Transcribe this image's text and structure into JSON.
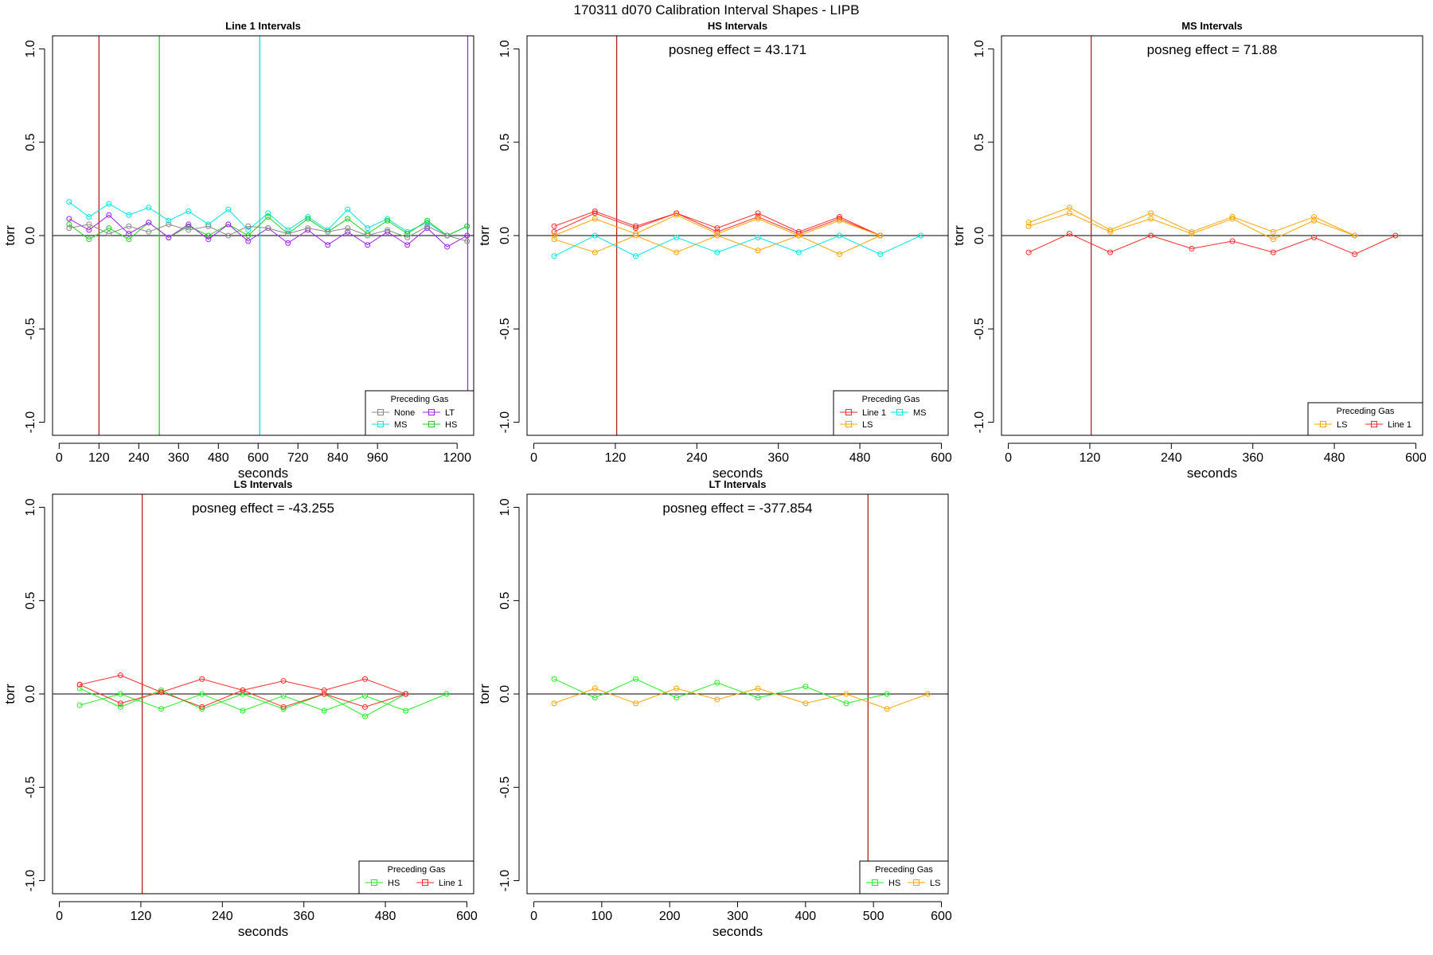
{
  "figure_title": "170311   d070   Calibration Interval Shapes - LIPB",
  "chart_data": [
    {
      "type": "line",
      "title": "Line 1 Intervals",
      "xlabel": "seconds",
      "ylabel": "torr",
      "xlim": [
        -20,
        1250
      ],
      "ylim": [
        -1.07,
        1.07
      ],
      "xticks": [
        0,
        120,
        240,
        360,
        480,
        600,
        720,
        840,
        960,
        1200
      ],
      "yticks": [
        1.0,
        0.5,
        0.0,
        -0.5,
        -1.0
      ],
      "ytick_labels": [
        "1.0",
        "0.5",
        "0.0",
        "-0.5",
        "-1.0"
      ],
      "annotation": "",
      "vlines": [
        {
          "x": 120,
          "color": "#b22222"
        },
        {
          "x": 302,
          "color": "#22cc22"
        },
        {
          "x": 605,
          "color": "#00e5e5"
        },
        {
          "x": 1232,
          "color": "#9a32cd"
        }
      ],
      "legend": {
        "title": "Preceding Gas",
        "position": "bottom-right",
        "columns": 2,
        "entries": [
          {
            "name": "None",
            "color": "#888888"
          },
          {
            "name": "LT",
            "color": "#a020f0"
          },
          {
            "name": "MS",
            "color": "#00e5e5"
          },
          {
            "name": "HS",
            "color": "#22cc22"
          }
        ]
      },
      "series": [
        {
          "name": "MS",
          "color": "#00e5e5",
          "x": [
            30,
            90,
            150,
            210,
            270,
            330,
            390,
            450,
            510,
            570,
            630,
            690,
            750,
            810,
            870,
            930,
            990,
            1050,
            1110,
            1170,
            1230
          ],
          "y": [
            0.18,
            0.1,
            0.17,
            0.11,
            0.15,
            0.08,
            0.13,
            0.06,
            0.14,
            0.03,
            0.12,
            0.03,
            0.1,
            0.03,
            0.14,
            0.04,
            0.09,
            0.02,
            0.07,
            0.0,
            0.05
          ]
        },
        {
          "name": "HS",
          "color": "#22cc22",
          "x": [
            30,
            90,
            150,
            210,
            270,
            330,
            390,
            450,
            510,
            570,
            630,
            690,
            750,
            810,
            870,
            930,
            990,
            1050,
            1110,
            1170,
            1230
          ],
          "y": [
            0.06,
            -0.02,
            0.04,
            -0.02,
            0.07,
            -0.01,
            0.05,
            0.0,
            0.06,
            0.0,
            0.1,
            0.01,
            0.09,
            0.02,
            0.09,
            0.01,
            0.08,
            0.01,
            0.08,
            0.0,
            0.05
          ]
        },
        {
          "name": "LT",
          "color": "#a020f0",
          "x": [
            30,
            90,
            150,
            210,
            270,
            330,
            390,
            450,
            510,
            570,
            630,
            690,
            750,
            810,
            870,
            930,
            990,
            1050,
            1110,
            1170,
            1230
          ],
          "y": [
            0.09,
            0.03,
            0.11,
            0.01,
            0.07,
            -0.01,
            0.06,
            -0.02,
            0.06,
            -0.03,
            0.04,
            -0.04,
            0.03,
            -0.05,
            0.02,
            -0.05,
            0.02,
            -0.05,
            0.04,
            -0.06,
            0.0
          ]
        },
        {
          "name": "None",
          "color": "#888888",
          "x": [
            30,
            90,
            150,
            210,
            270,
            330,
            390,
            450,
            510,
            570,
            630,
            690,
            750,
            810,
            870,
            930,
            990,
            1050,
            1110,
            1170,
            1230
          ],
          "y": [
            0.04,
            0.06,
            0.01,
            0.05,
            0.02,
            0.06,
            0.03,
            0.05,
            0.0,
            0.05,
            0.04,
            0.01,
            0.04,
            0.02,
            0.04,
            0.0,
            0.03,
            -0.01,
            0.05,
            0.0,
            -0.03
          ]
        }
      ]
    },
    {
      "type": "line",
      "title": "HS Intervals",
      "xlabel": "seconds",
      "ylabel": "torr",
      "xlim": [
        -10,
        610
      ],
      "ylim": [
        -1.07,
        1.07
      ],
      "xticks": [
        0,
        120,
        240,
        360,
        480,
        600
      ],
      "yticks": [
        1.0,
        0.5,
        0.0,
        -0.5,
        -1.0
      ],
      "ytick_labels": [
        "1.0",
        "0.5",
        "0.0",
        "-0.5",
        "-1.0"
      ],
      "annotation": "posneg effect = 43.171",
      "vlines": [
        {
          "x": 122,
          "color": "#b22222"
        }
      ],
      "legend": {
        "title": "Preceding Gas",
        "position": "bottom-right",
        "columns": 2,
        "entries": [
          {
            "name": "Line 1",
            "color": "#ff2a2a"
          },
          {
            "name": "MS",
            "color": "#00e5e5"
          },
          {
            "name": "LS",
            "color": "#ffa500"
          }
        ]
      },
      "series": [
        {
          "name": "Line 1",
          "color": "#ff2a2a",
          "x": [
            30,
            90,
            150,
            210,
            270,
            330,
            390,
            450,
            510
          ],
          "y": [
            0.05,
            0.13,
            0.05,
            0.12,
            0.04,
            0.12,
            0.02,
            0.1,
            0.0
          ]
        },
        {
          "name": "Line 1",
          "color": "#ff2a2a",
          "x": [
            30,
            90,
            150,
            210,
            270,
            330,
            390,
            450,
            510
          ],
          "y": [
            0.02,
            0.12,
            0.04,
            0.12,
            0.02,
            0.1,
            0.01,
            0.09,
            0.0
          ]
        },
        {
          "name": "LS",
          "color": "#ffa500",
          "x": [
            30,
            90,
            150,
            210,
            270,
            330,
            390,
            450,
            510
          ],
          "y": [
            0.0,
            0.09,
            0.01,
            0.11,
            0.01,
            0.09,
            0.0,
            0.08,
            0.0
          ]
        },
        {
          "name": "LS",
          "color": "#ffa500",
          "x": [
            30,
            90,
            150,
            210,
            270,
            330,
            390,
            450,
            510
          ],
          "y": [
            -0.02,
            -0.09,
            0.0,
            -0.09,
            0.0,
            -0.08,
            0.0,
            -0.1,
            0.0
          ]
        },
        {
          "name": "MS",
          "color": "#00e5e5",
          "x": [
            30,
            90,
            150,
            210,
            270,
            330,
            390,
            450,
            510,
            570
          ],
          "y": [
            -0.11,
            0.0,
            -0.11,
            -0.01,
            -0.09,
            -0.01,
            -0.09,
            0.0,
            -0.1,
            0.0
          ]
        }
      ]
    },
    {
      "type": "line",
      "title": "MS Intervals",
      "xlabel": "seconds",
      "ylabel": "torr",
      "xlim": [
        -10,
        610
      ],
      "ylim": [
        -1.07,
        1.07
      ],
      "xticks": [
        0,
        120,
        240,
        360,
        480,
        600
      ],
      "yticks": [
        1.0,
        0.5,
        0.0,
        -0.5,
        -1.0
      ],
      "ytick_labels": [
        "1.0",
        "0.5",
        "0.0",
        "-0.5",
        "-1.0"
      ],
      "annotation": "posneg effect = 71.88",
      "vlines": [
        {
          "x": 122,
          "color": "#b22222"
        }
      ],
      "legend": {
        "title": "Preceding Gas",
        "position": "bottom-right",
        "columns": 2,
        "entries": [
          {
            "name": "LS",
            "color": "#ffa500"
          },
          {
            "name": "Line 1",
            "color": "#ff2a2a"
          }
        ]
      },
      "series": [
        {
          "name": "LS",
          "color": "#ffa500",
          "x": [
            30,
            90,
            150,
            210,
            270,
            330,
            390,
            450,
            510
          ],
          "y": [
            0.07,
            0.15,
            0.03,
            0.12,
            0.02,
            0.1,
            0.02,
            0.1,
            0.0
          ]
        },
        {
          "name": "LS",
          "color": "#ffa500",
          "x": [
            30,
            90,
            150,
            210,
            270,
            330,
            390,
            450,
            510
          ],
          "y": [
            0.05,
            0.12,
            0.02,
            0.09,
            0.01,
            0.09,
            -0.02,
            0.08,
            0.0
          ]
        },
        {
          "name": "Line 1",
          "color": "#ff2a2a",
          "x": [
            30,
            90,
            150,
            210,
            270,
            330,
            390,
            450,
            510,
            570
          ],
          "y": [
            -0.09,
            0.01,
            -0.09,
            0.0,
            -0.07,
            -0.03,
            -0.09,
            -0.01,
            -0.1,
            0.0
          ]
        }
      ]
    },
    {
      "type": "line",
      "title": "LS Intervals",
      "xlabel": "seconds",
      "ylabel": "torr",
      "xlim": [
        -10,
        610
      ],
      "ylim": [
        -1.07,
        1.07
      ],
      "xticks": [
        0,
        120,
        240,
        360,
        480,
        600
      ],
      "yticks": [
        1.0,
        0.5,
        0.0,
        -0.5,
        -1.0
      ],
      "ytick_labels": [
        "1.0",
        "0.5",
        "0.0",
        "-0.5",
        "-1.0"
      ],
      "annotation": "posneg effect = -43.255",
      "vlines": [
        {
          "x": 122,
          "color": "#b22222"
        }
      ],
      "legend": {
        "title": "Preceding Gas",
        "position": "bottom-right",
        "columns": 2,
        "entries": [
          {
            "name": "HS",
            "color": "#22ee22"
          },
          {
            "name": "Line 1",
            "color": "#ff2a2a"
          }
        ]
      },
      "series": [
        {
          "name": "HS",
          "color": "#22ee22",
          "x": [
            30,
            90,
            150,
            210,
            270,
            330,
            390,
            450,
            510,
            570
          ],
          "y": [
            -0.06,
            0.0,
            -0.08,
            0.0,
            -0.09,
            -0.01,
            -0.09,
            -0.01,
            -0.09,
            0.0
          ]
        },
        {
          "name": "HS",
          "color": "#22ee22",
          "x": [
            30,
            90,
            150,
            210,
            270,
            330,
            390,
            450,
            510
          ],
          "y": [
            0.03,
            -0.07,
            0.02,
            -0.08,
            0.0,
            -0.08,
            0.0,
            -0.12,
            0.0
          ]
        },
        {
          "name": "Line 1",
          "color": "#ff2a2a",
          "x": [
            30,
            90,
            150,
            210,
            270,
            330,
            390,
            450,
            510
          ],
          "y": [
            0.05,
            0.1,
            0.01,
            0.08,
            0.02,
            0.07,
            0.02,
            0.08,
            0.0
          ]
        },
        {
          "name": "Line 1",
          "color": "#ff2a2a",
          "x": [
            30,
            90,
            150,
            210,
            270,
            330,
            390,
            450,
            510
          ],
          "y": [
            0.05,
            -0.05,
            0.01,
            -0.07,
            0.02,
            -0.07,
            0.0,
            -0.07,
            0.0
          ]
        }
      ]
    },
    {
      "type": "line",
      "title": "LT Intervals",
      "xlabel": "seconds",
      "ylabel": "torr",
      "xlim": [
        -10,
        610
      ],
      "ylim": [
        -1.07,
        1.07
      ],
      "xticks": [
        0,
        100,
        200,
        300,
        400,
        500,
        600
      ],
      "yticks": [
        1.0,
        0.5,
        0.0,
        -0.5,
        -1.0
      ],
      "ytick_labels": [
        "1.0",
        "0.5",
        "0.0",
        "-0.5",
        "-1.0"
      ],
      "annotation": "posneg effect = -377.854",
      "vlines": [
        {
          "x": 492,
          "color": "#b22222"
        }
      ],
      "legend": {
        "title": "Preceding Gas",
        "position": "bottom-right",
        "columns": 2,
        "entries": [
          {
            "name": "HS",
            "color": "#22ee22"
          },
          {
            "name": "LS",
            "color": "#ffa500"
          }
        ]
      },
      "series": [
        {
          "name": "HS",
          "color": "#22ee22",
          "x": [
            30,
            90,
            150,
            210,
            270,
            330,
            400,
            460,
            520
          ],
          "y": [
            0.08,
            -0.02,
            0.08,
            -0.02,
            0.06,
            -0.02,
            0.04,
            -0.05,
            0.0
          ]
        },
        {
          "name": "LS",
          "color": "#ffa500",
          "x": [
            30,
            90,
            150,
            210,
            270,
            330,
            400,
            460,
            520,
            580
          ],
          "y": [
            -0.05,
            0.03,
            -0.05,
            0.03,
            -0.03,
            0.03,
            -0.05,
            0.0,
            -0.08,
            0.0
          ]
        }
      ]
    }
  ]
}
